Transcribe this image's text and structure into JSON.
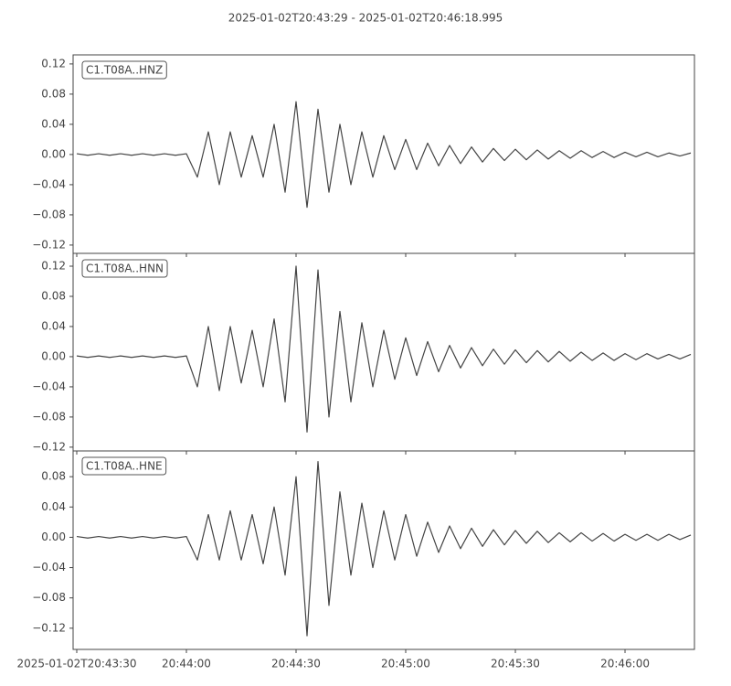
{
  "chart_data": [
    {
      "type": "line",
      "title": "2025-01-02T20:43:29  -  2025-01-02T20:46:18.995",
      "annotation": "C1.T08A..HNZ",
      "x": [
        "20:43:30",
        "20:43:33",
        "20:43:36",
        "20:43:39",
        "20:43:42",
        "20:43:45",
        "20:43:48",
        "20:43:51",
        "20:43:54",
        "20:43:57",
        "20:44:00",
        "20:44:03",
        "20:44:06",
        "20:44:09",
        "20:44:12",
        "20:44:15",
        "20:44:18",
        "20:44:21",
        "20:44:24",
        "20:44:27",
        "20:44:30",
        "20:44:33",
        "20:44:36",
        "20:44:39",
        "20:44:42",
        "20:44:45",
        "20:44:48",
        "20:44:51",
        "20:44:54",
        "20:44:57",
        "20:45:00",
        "20:45:03",
        "20:45:06",
        "20:45:09",
        "20:45:12",
        "20:45:15",
        "20:45:18",
        "20:45:21",
        "20:45:24",
        "20:45:27",
        "20:45:30",
        "20:45:33",
        "20:45:36",
        "20:45:39",
        "20:45:42",
        "20:45:45",
        "20:45:48",
        "20:45:51",
        "20:45:54",
        "20:45:57",
        "20:46:00",
        "20:46:03",
        "20:46:06",
        "20:46:09",
        "20:46:12",
        "20:46:15",
        "20:46:18"
      ],
      "series": [
        {
          "color": "#444444",
          "values": [
            0.001,
            -0.001,
            0.001,
            -0.001,
            0.001,
            -0.001,
            0.001,
            -0.001,
            0.001,
            -0.001,
            0.001,
            -0.03,
            0.03,
            -0.04,
            0.03,
            -0.03,
            0.025,
            -0.03,
            0.04,
            -0.05,
            0.07,
            -0.07,
            0.06,
            -0.05,
            0.04,
            -0.04,
            0.03,
            -0.03,
            0.025,
            -0.02,
            0.02,
            -0.02,
            0.015,
            -0.015,
            0.012,
            -0.012,
            0.01,
            -0.01,
            0.008,
            -0.008,
            0.007,
            -0.007,
            0.006,
            -0.006,
            0.005,
            -0.005,
            0.005,
            -0.004,
            0.004,
            -0.004,
            0.003,
            -0.003,
            0.003,
            -0.003,
            0.002,
            -0.002,
            0.002
          ]
        }
      ],
      "ylim": [
        -0.131,
        0.132
      ],
      "yticks": [
        {
          "value": 0.12,
          "label": "0.12"
        },
        {
          "value": 0.08,
          "label": "0.08"
        },
        {
          "value": 0.04,
          "label": "0.04"
        },
        {
          "value": 0,
          "label": "0.00"
        },
        {
          "value": -0.04,
          "label": "−0.04"
        },
        {
          "value": -0.08,
          "label": "−0.08"
        },
        {
          "value": -0.12,
          "label": "−0.12"
        }
      ]
    },
    {
      "type": "line",
      "annotation": "C1.T08A..HNN",
      "x": [
        "20:43:30",
        "20:43:33",
        "20:43:36",
        "20:43:39",
        "20:43:42",
        "20:43:45",
        "20:43:48",
        "20:43:51",
        "20:43:54",
        "20:43:57",
        "20:44:00",
        "20:44:03",
        "20:44:06",
        "20:44:09",
        "20:44:12",
        "20:44:15",
        "20:44:18",
        "20:44:21",
        "20:44:24",
        "20:44:27",
        "20:44:30",
        "20:44:33",
        "20:44:36",
        "20:44:39",
        "20:44:42",
        "20:44:45",
        "20:44:48",
        "20:44:51",
        "20:44:54",
        "20:44:57",
        "20:45:00",
        "20:45:03",
        "20:45:06",
        "20:45:09",
        "20:45:12",
        "20:45:15",
        "20:45:18",
        "20:45:21",
        "20:45:24",
        "20:45:27",
        "20:45:30",
        "20:45:33",
        "20:45:36",
        "20:45:39",
        "20:45:42",
        "20:45:45",
        "20:45:48",
        "20:45:51",
        "20:45:54",
        "20:45:57",
        "20:46:00",
        "20:46:03",
        "20:46:06",
        "20:46:09",
        "20:46:12",
        "20:46:15",
        "20:46:18"
      ],
      "series": [
        {
          "color": "#444444",
          "values": [
            0.001,
            -0.001,
            0.001,
            -0.001,
            0.001,
            -0.001,
            0.001,
            -0.001,
            0.001,
            -0.001,
            0.001,
            -0.04,
            0.04,
            -0.045,
            0.04,
            -0.035,
            0.035,
            -0.04,
            0.05,
            -0.06,
            0.12,
            -0.1,
            0.115,
            -0.08,
            0.06,
            -0.06,
            0.045,
            -0.04,
            0.035,
            -0.03,
            0.025,
            -0.025,
            0.02,
            -0.02,
            0.015,
            -0.015,
            0.012,
            -0.012,
            0.01,
            -0.01,
            0.009,
            -0.008,
            0.008,
            -0.007,
            0.007,
            -0.006,
            0.006,
            -0.005,
            0.005,
            -0.005,
            0.004,
            -0.004,
            0.004,
            -0.003,
            0.003,
            -0.003,
            0.003
          ]
        }
      ],
      "ylim": [
        -0.125,
        0.137
      ],
      "yticks": [
        {
          "value": 0.12,
          "label": "0.12"
        },
        {
          "value": 0.08,
          "label": "0.08"
        },
        {
          "value": 0.04,
          "label": "0.04"
        },
        {
          "value": 0,
          "label": "0.00"
        },
        {
          "value": -0.04,
          "label": "−0.04"
        },
        {
          "value": -0.08,
          "label": "−0.08"
        },
        {
          "value": -0.12,
          "label": "−0.12"
        }
      ]
    },
    {
      "type": "line",
      "annotation": "C1.T08A..HNE",
      "x": [
        "20:43:30",
        "20:43:33",
        "20:43:36",
        "20:43:39",
        "20:43:42",
        "20:43:45",
        "20:43:48",
        "20:43:51",
        "20:43:54",
        "20:43:57",
        "20:44:00",
        "20:44:03",
        "20:44:06",
        "20:44:09",
        "20:44:12",
        "20:44:15",
        "20:44:18",
        "20:44:21",
        "20:44:24",
        "20:44:27",
        "20:44:30",
        "20:44:33",
        "20:44:36",
        "20:44:39",
        "20:44:42",
        "20:44:45",
        "20:44:48",
        "20:44:51",
        "20:44:54",
        "20:44:57",
        "20:45:00",
        "20:45:03",
        "20:45:06",
        "20:45:09",
        "20:45:12",
        "20:45:15",
        "20:45:18",
        "20:45:21",
        "20:45:24",
        "20:45:27",
        "20:45:30",
        "20:45:33",
        "20:45:36",
        "20:45:39",
        "20:45:42",
        "20:45:45",
        "20:45:48",
        "20:45:51",
        "20:45:54",
        "20:45:57",
        "20:46:00",
        "20:46:03",
        "20:46:06",
        "20:46:09",
        "20:46:12",
        "20:46:15",
        "20:46:18"
      ],
      "series": [
        {
          "color": "#444444",
          "values": [
            0.001,
            -0.001,
            0.001,
            -0.001,
            0.001,
            -0.001,
            0.001,
            -0.001,
            0.001,
            -0.001,
            0.001,
            -0.03,
            0.03,
            -0.03,
            0.035,
            -0.03,
            0.03,
            -0.035,
            0.04,
            -0.05,
            0.08,
            -0.13,
            0.1,
            -0.09,
            0.06,
            -0.05,
            0.045,
            -0.04,
            0.035,
            -0.03,
            0.03,
            -0.025,
            0.02,
            -0.02,
            0.015,
            -0.015,
            0.012,
            -0.012,
            0.01,
            -0.01,
            0.009,
            -0.008,
            0.008,
            -0.007,
            0.006,
            -0.006,
            0.006,
            -0.005,
            0.005,
            -0.005,
            0.004,
            -0.004,
            0.004,
            -0.004,
            0.004,
            -0.003,
            0.003
          ]
        }
      ],
      "ylim": [
        -0.148,
        0.114
      ],
      "yticks": [
        {
          "value": 0.08,
          "label": "0.08"
        },
        {
          "value": 0.04,
          "label": "0.04"
        },
        {
          "value": 0,
          "label": "0.00"
        },
        {
          "value": -0.04,
          "label": "−0.04"
        },
        {
          "value": -0.08,
          "label": "−0.08"
        },
        {
          "value": -0.12,
          "label": "−0.12"
        }
      ],
      "xlim": [
        "2025-01-02T20:43:29",
        "2025-01-02T20:46:18.995"
      ],
      "xticks": [
        "2025-01-02T20:43:30",
        "20:44:00",
        "20:44:30",
        "20:45:00",
        "20:45:30",
        "20:46:00"
      ]
    }
  ]
}
